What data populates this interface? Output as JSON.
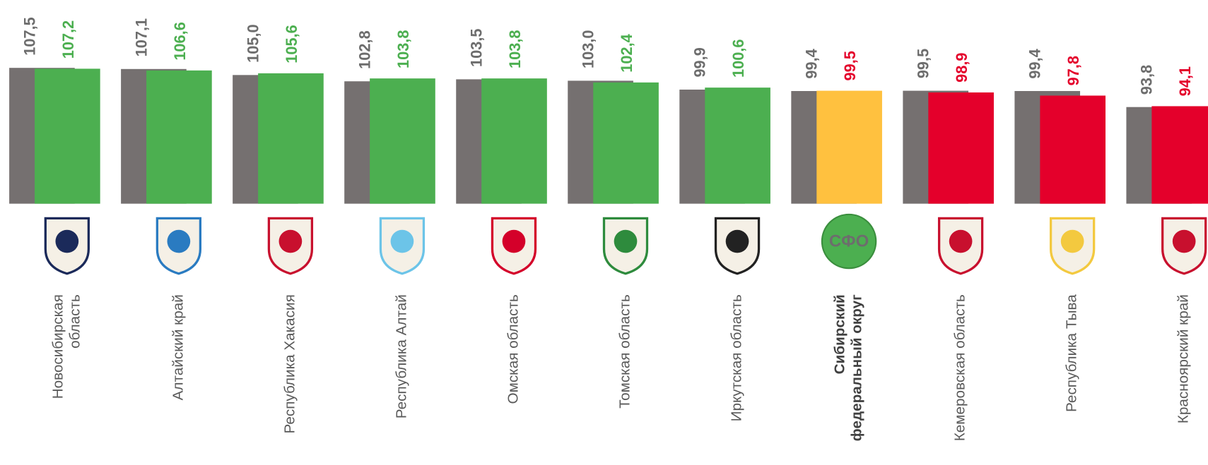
{
  "chart_data": {
    "type": "bar",
    "categories": [
      "Новосибирская\nобласть",
      "Алтайский край",
      "Республика Хакасия",
      "Республика Алтай",
      "Омская область",
      "Томская область",
      "Иркутская область",
      "Сибирский\nфедеральный округ",
      "Кемеровская область",
      "Республика Тыва",
      "Красноярский край"
    ],
    "series": [
      {
        "color": "#757070",
        "label_color": "#6d6d6d",
        "values": [
          107.5,
          107.1,
          105.0,
          102.8,
          103.5,
          103.0,
          99.9,
          99.4,
          99.5,
          99.4,
          93.8
        ],
        "value_labels": [
          "107,5",
          "107,1",
          "105,0",
          "102,8",
          "103,5",
          "103,0",
          "99,9",
          "99,4",
          "99,5",
          "99,4",
          "93,8"
        ]
      },
      {
        "colors": [
          "#4caf50",
          "#4caf50",
          "#4caf50",
          "#4caf50",
          "#4caf50",
          "#4caf50",
          "#4caf50",
          "#ffc13f",
          "#e4002b",
          "#e4002b",
          "#e4002b"
        ],
        "label_colors": [
          "#4caf50",
          "#4caf50",
          "#4caf50",
          "#4caf50",
          "#4caf50",
          "#4caf50",
          "#4caf50",
          "#e4002b",
          "#e4002b",
          "#e4002b",
          "#e4002b"
        ],
        "values": [
          107.2,
          106.6,
          105.6,
          103.8,
          103.8,
          102.4,
          100.6,
          99.5,
          98.9,
          97.8,
          94.1
        ],
        "value_labels": [
          "107,2",
          "106,6",
          "105,6",
          "103,8",
          "103,8",
          "102,4",
          "100,6",
          "99,5",
          "98,9",
          "97,8",
          "94,1"
        ]
      }
    ],
    "ylim": [
      60,
      130
    ],
    "badge": "СФО"
  }
}
